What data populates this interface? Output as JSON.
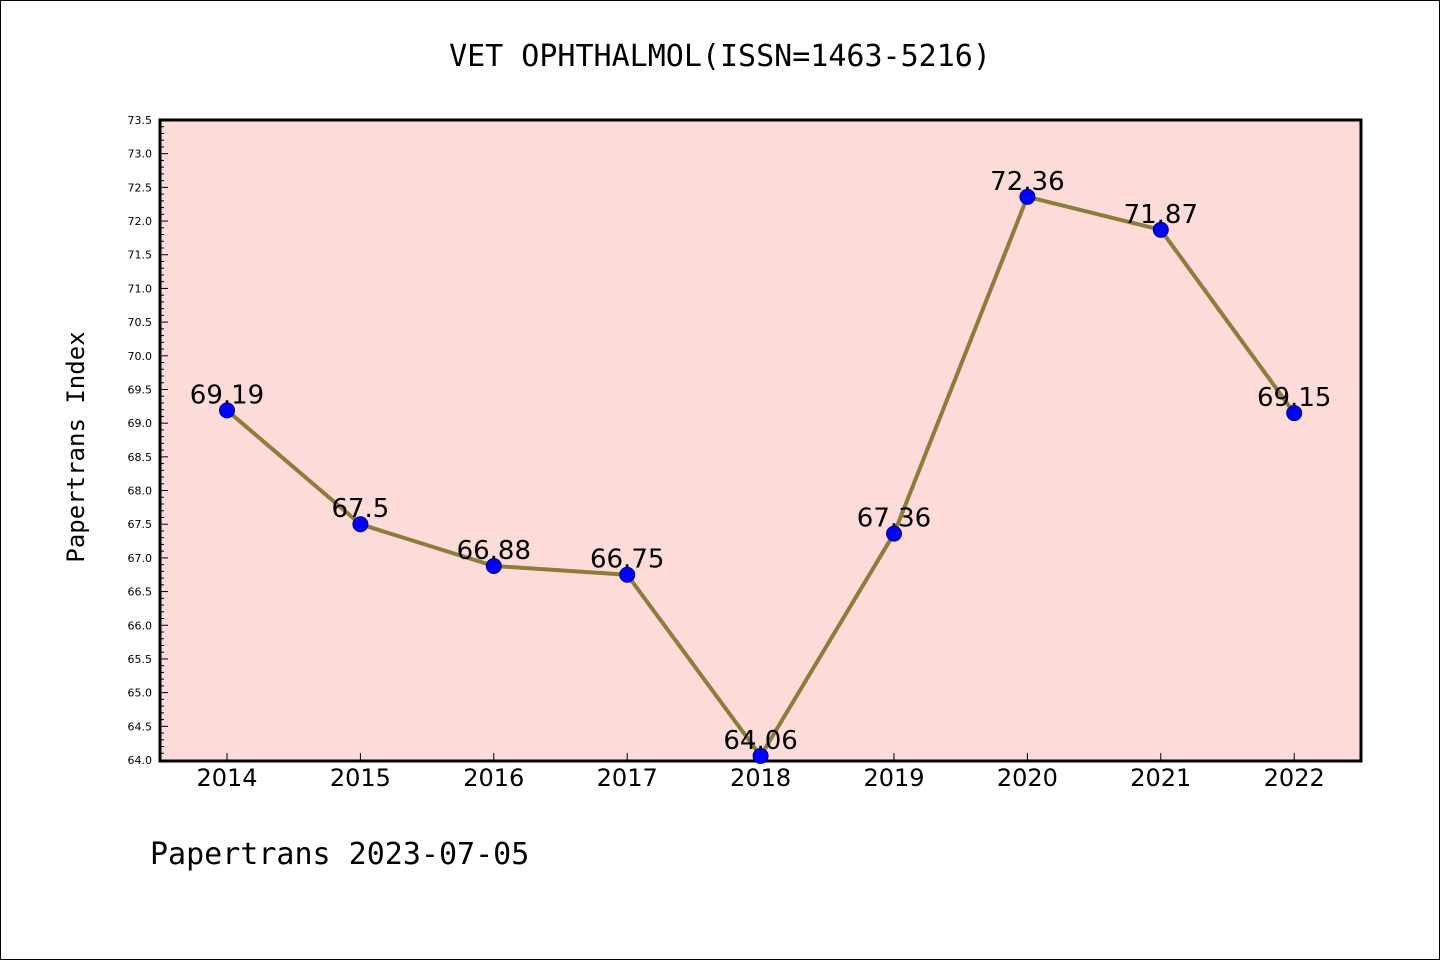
{
  "colors": {
    "plot_background": "#fddbd9",
    "line": "#8b7d3a",
    "marker_fill": "#0000ff",
    "marker_edge": "#00008b",
    "axes": "#000000"
  },
  "footer": "Papertrans 2023-07-05",
  "chart_data": {
    "type": "line",
    "title": "VET OPHTHALMOL(ISSN=1463-5216)",
    "xlabel": "",
    "ylabel": "Papertrans Index",
    "categories": [
      "2014",
      "2015",
      "2016",
      "2017",
      "2018",
      "2019",
      "2020",
      "2021",
      "2022"
    ],
    "values": [
      69.19,
      67.5,
      66.88,
      66.75,
      64.06,
      67.36,
      72.36,
      71.87,
      69.15
    ],
    "data_labels": [
      "69.19",
      "67.5",
      "66.88",
      "66.75",
      "64.06",
      "67.36",
      "72.36",
      "71.87",
      "69.15"
    ],
    "ylim": [
      64.0,
      73.5
    ],
    "yticks": [
      "64.0",
      "64.5",
      "65.0",
      "65.5",
      "66.0",
      "66.5",
      "67.0",
      "67.5",
      "68.0",
      "68.5",
      "69.0",
      "69.5",
      "70.0",
      "70.5",
      "71.0",
      "71.5",
      "72.0",
      "72.5",
      "73.0",
      "73.5"
    ],
    "grid": false,
    "legend": "none"
  }
}
